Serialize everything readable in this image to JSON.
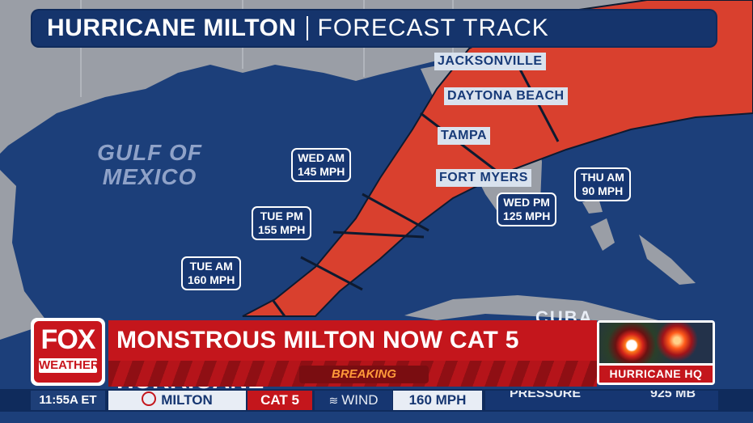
{
  "title": {
    "main": "HURRICANE MILTON",
    "sub": "FORECAST TRACK"
  },
  "map": {
    "water_label": [
      "GULF OF",
      "MEXICO"
    ],
    "country_label": "CUBA",
    "cities": [
      "JACKSONVILLE",
      "DAYTONA BEACH",
      "TAMPA",
      "FORT MYERS"
    ],
    "forecast_points": [
      {
        "time": "WED AM",
        "speed": "145 MPH"
      },
      {
        "time": "TUE PM",
        "speed": "155 MPH"
      },
      {
        "time": "TUE AM",
        "speed": "160 MPH"
      },
      {
        "time": "WED PM",
        "speed": "125 MPH"
      },
      {
        "time": "THU AM",
        "speed": "90 MPH"
      }
    ],
    "colors": {
      "water": "#1c3f7a",
      "land": "#9a9ea6",
      "cone": "#d9402e"
    }
  },
  "lower_third": {
    "logo_top": "FOX",
    "logo_bottom": "WEATHER",
    "headline": "MONSTROUS MILTON NOW CAT 5 HURRICANE",
    "breaking": "BREAKING",
    "thumbnail_label": "HURRICANE HQ"
  },
  "ticker": {
    "time": "11:55A ET",
    "storm_name": "MILTON",
    "category": "CAT 5",
    "wind_label": "WIND",
    "wind_value": "160 MPH",
    "pressure_label": "PRESSURE",
    "pressure_value": "925 MB"
  }
}
